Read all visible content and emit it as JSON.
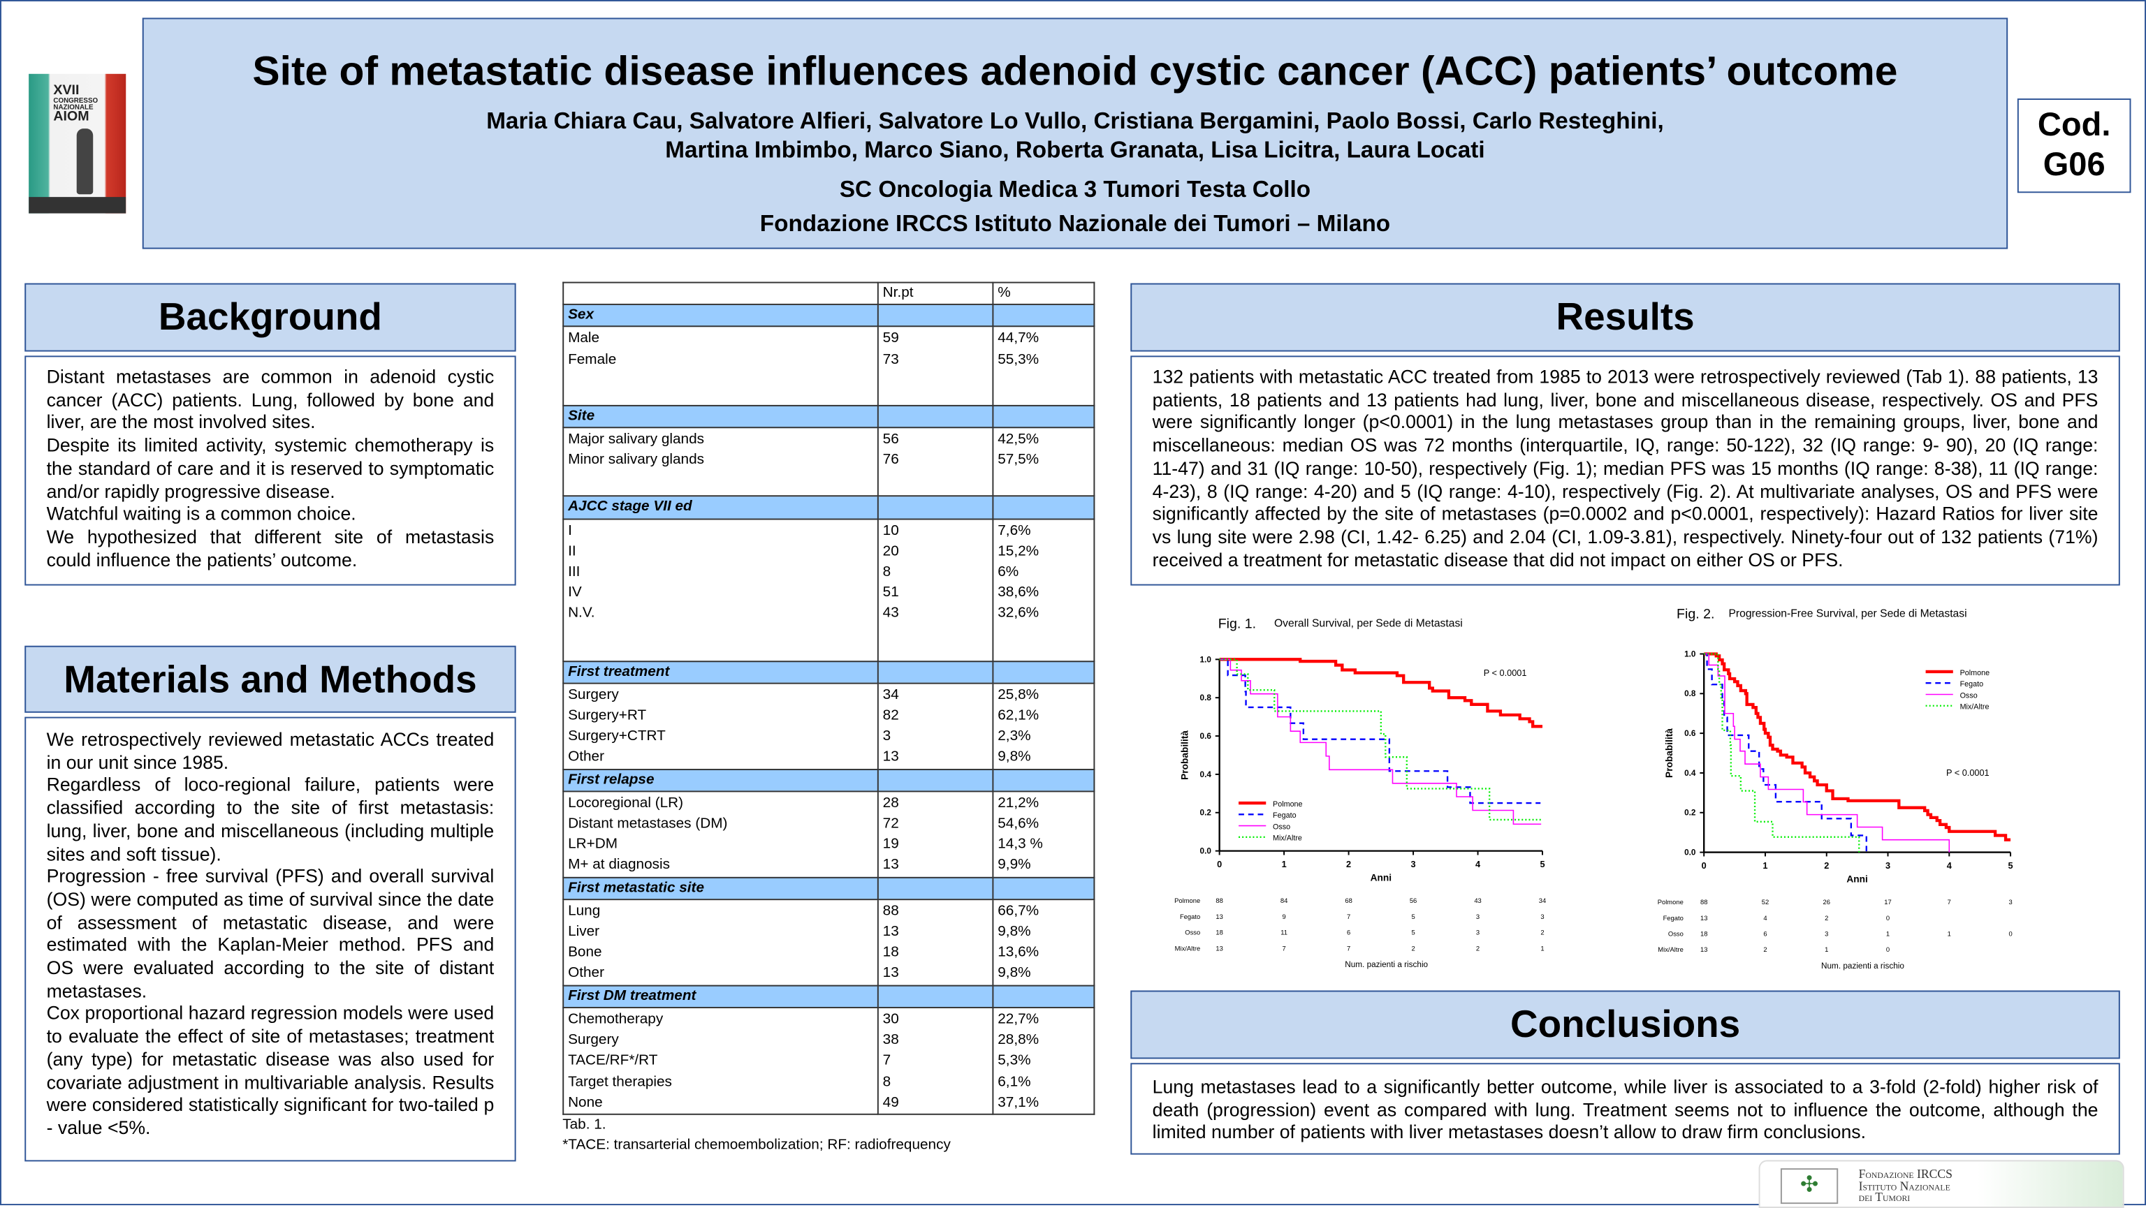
{
  "logo_aiom": {
    "line1": "XVII",
    "line2": "CONGRESSO",
    "line3": "NAZIONALE",
    "line4": "AIOM"
  },
  "header": {
    "title": "Site of metastatic disease influences adenoid cystic cancer (ACC) patients’ outcome",
    "authors_1": "Maria Chiara Cau, Salvatore Alfieri, Salvatore Lo Vullo, Cristiana Bergamini, Paolo Bossi, Carlo Resteghini,",
    "authors_2": "Martina Imbimbo, Marco Siano, Roberta Granata, Lisa Licitra, Laura Locati",
    "institution_1": "SC Oncologia  Medica 3 Tumori Testa Collo",
    "institution_2": "Fondazione IRCCS Istituto Nazionale dei Tumori – Milano"
  },
  "code": {
    "label": "Cod.",
    "value": "G06"
  },
  "background": {
    "title": "Background",
    "paragraphs": [
      "Distant metastases are common in adenoid cystic cancer (ACC) patients. Lung, followed by bone and liver, are the most involved sites.",
      "Despite its limited activity, systemic chemotherapy is the standard of care and it is reserved to symptomatic and/or rapidly progressive disease.",
      "Watchful waiting is a common choice.",
      "We hypothesized that different site of metastasis could influence the patients’ outcome."
    ]
  },
  "methods": {
    "title": "Materials and Methods",
    "paragraphs": [
      "We retrospectively reviewed metastatic ACCs treated in our unit since 1985.",
      "Regardless of loco-regional failure, patients were classified according to the site of first metastasis: lung, liver, bone and miscellaneous (including multiple sites and soft tissue).",
      "Progression - free survival (PFS) and overall survival (OS) were computed as time of survival since the date of assessment of metastatic disease, and were estimated with the Kaplan-Meier method. PFS and OS were evaluated according to the site of distant metastases.",
      "Cox proportional hazard regression models were used to evaluate the effect of site of metastases; treatment (any type) for metastatic disease was also used for covariate adjustment in multivariable analysis. Results were considered statistically significant for two-tailed p - value <5%."
    ]
  },
  "table": {
    "headers": [
      "",
      "Nr.pt",
      "%"
    ],
    "sections": [
      {
        "name": "Sex",
        "rows": [
          [
            "Male",
            "59",
            "44,7%"
          ],
          [
            "Female",
            "73",
            "55,3%"
          ]
        ]
      },
      {
        "name": "Site",
        "rows": [
          [
            "Major salivary glands",
            "56",
            "42,5%"
          ],
          [
            "Minor salivary glands",
            "76",
            "57,5%"
          ]
        ]
      },
      {
        "name": "AJCC stage VII ed",
        "rows": [
          [
            "I",
            "10",
            "7,6%"
          ],
          [
            "II",
            "20",
            "15,2%"
          ],
          [
            "III",
            "8",
            "6%"
          ],
          [
            "IV",
            "51",
            "38,6%"
          ],
          [
            "N.V.",
            "43",
            "32,6%"
          ]
        ]
      },
      {
        "name": "First treatment",
        "rows": [
          [
            "Surgery",
            "34",
            "25,8%"
          ],
          [
            "Surgery+RT",
            "82",
            "62,1%"
          ],
          [
            "Surgery+CTRT",
            "3",
            "2,3%"
          ],
          [
            "Other",
            "13",
            "9,8%"
          ]
        ]
      },
      {
        "name": "First relapse",
        "rows": [
          [
            "Locoregional (LR)",
            "28",
            "21,2%"
          ],
          [
            "Distant metastases (DM)",
            "72",
            "54,6%"
          ],
          [
            "LR+DM",
            "19",
            "14,3 %"
          ],
          [
            "M+ at diagnosis",
            "13",
            "9,9%"
          ]
        ]
      },
      {
        "name": "First metastatic site",
        "rows": [
          [
            "Lung",
            "88",
            "66,7%"
          ],
          [
            "Liver",
            "13",
            "9,8%"
          ],
          [
            "Bone",
            "18",
            "13,6%"
          ],
          [
            "Other",
            "13",
            "9,8%"
          ]
        ]
      },
      {
        "name": "First DM treatment",
        "rows": [
          [
            "Chemotherapy",
            "30",
            "22,7%"
          ],
          [
            "Surgery",
            "38",
            "28,8%"
          ],
          [
            "TACE/RF*/RT",
            "7",
            "5,3%"
          ],
          [
            "Target therapies",
            "8",
            "6,1%"
          ],
          [
            "None",
            "49",
            "37,1%"
          ]
        ]
      }
    ],
    "caption": "Tab. 1.",
    "footnote": "*TACE: transarterial chemoembolization; RF: radiofrequency"
  },
  "results": {
    "title": "Results",
    "text": "132 patients with metastatic ACC treated from 1985 to 2013 were retrospectively reviewed (Tab 1). 88 patients, 13 patients, 18 patients and 13 patients had lung, liver, bone and miscellaneous disease, respectively. OS and PFS were significantly longer (p<0.0001) in the lung metastases group than in the remaining groups, liver, bone and miscellaneous: median OS was 72 months (interquartile, IQ, range: 50-122), 32 (IQ range: 9- 90), 20 (IQ range: 11-47) and 31 (IQ range: 10-50), respectively (Fig. 1); median PFS was 15 months (IQ range: 8-38), 11 (IQ range: 4-23), 8 (IQ range: 4-20) and 5 (IQ range: 4-10), respectively (Fig. 2). At multivariate analyses, OS and PFS were significantly affected by the site of metastases (p=0.0002 and p<0.0001, respectively): Hazard Ratios for liver site vs lung site were 2.98 (CI, 1.42- 6.25) and 2.04 (CI, 1.09-3.81), respectively. Ninety-four out of 132 patients (71%) received a treatment for metastatic disease that did not impact on either OS or PFS."
  },
  "conclusions": {
    "title": "Conclusions",
    "text": "Lung metastases lead to a significantly better outcome, while liver is associated to a 3-fold (2-fold) higher risk of death (progression) event as compared with lung. Treatment seems not to influence the outcome, although the limited number of patients with liver metastases doesn’t allow to draw firm conclusions."
  },
  "logo_int": {
    "line1": "Fondazione IRCCS",
    "line2": "Istituto Nazionale",
    "line3": "dei Tumori"
  },
  "chart_data": [
    {
      "type": "line",
      "step": true,
      "fig_label": "Fig. 1.",
      "title": "Overall Survival, per Sede di Metastasi",
      "xlabel": "Anni",
      "ylabel": "Probabilità",
      "xlim": [
        0,
        5
      ],
      "ylim": [
        0,
        1
      ],
      "xticks": [
        "0",
        "1",
        "2",
        "3",
        "4",
        "5"
      ],
      "yticks": [
        "0.0",
        "0.2",
        "0.4",
        "0.6",
        "0.8",
        "1.0"
      ],
      "annotation": "P < 0.0001",
      "legend": "bottom-left",
      "series": [
        {
          "name": "Polmone",
          "color": "#ff0000",
          "style": "solid-thick",
          "end": 5,
          "steps": [
            [
              1.25,
              0.99
            ],
            [
              1.8,
              0.97
            ],
            [
              1.9,
              0.945
            ],
            [
              2.1,
              0.93
            ],
            [
              2.75,
              0.915
            ],
            [
              2.85,
              0.88
            ],
            [
              3.25,
              0.85
            ],
            [
              3.3,
              0.835
            ],
            [
              3.55,
              0.8
            ],
            [
              3.8,
              0.785
            ],
            [
              3.9,
              0.765
            ],
            [
              4.15,
              0.73
            ],
            [
              4.35,
              0.71
            ],
            [
              4.65,
              0.69
            ],
            [
              4.8,
              0.675
            ],
            [
              4.85,
              0.65
            ]
          ]
        },
        {
          "name": "Fegato",
          "color": "#0000ff",
          "style": "dashed",
          "end": 4.97,
          "steps": [
            [
              0.13,
              0.917
            ],
            [
              0.4,
              0.833
            ],
            [
              0.41,
              0.75
            ],
            [
              1.1,
              0.667
            ],
            [
              1.3,
              0.583
            ],
            [
              2.63,
              0.417
            ],
            [
              3.53,
              0.333
            ],
            [
              3.88,
              0.25
            ]
          ]
        },
        {
          "name": "Osso",
          "color": "#ff00ff",
          "style": "thin",
          "end": 4.98,
          "steps": [
            [
              0.17,
              0.944
            ],
            [
              0.34,
              0.889
            ],
            [
              0.48,
              0.82
            ],
            [
              0.9,
              0.7
            ],
            [
              1.1,
              0.625
            ],
            [
              1.25,
              0.566
            ],
            [
              1.65,
              0.495
            ],
            [
              1.7,
              0.424
            ],
            [
              2.68,
              0.353
            ],
            [
              3.67,
              0.283
            ],
            [
              3.92,
              0.212
            ],
            [
              4.55,
              0.14
            ]
          ]
        },
        {
          "name": "Mix/Altre",
          "color": "#00ee00",
          "style": "dotted",
          "end": 5,
          "steps": [
            [
              0.27,
              0.923
            ],
            [
              0.44,
              0.84
            ],
            [
              0.85,
              0.73
            ],
            [
              2.5,
              0.61
            ],
            [
              2.57,
              0.49
            ],
            [
              2.9,
              0.325
            ],
            [
              4.18,
              0.163
            ]
          ]
        }
      ],
      "risk_table": {
        "title": "Num. pazienti a rischio",
        "rows": [
          [
            "Polmone",
            "88",
            "84",
            "68",
            "56",
            "43",
            "34"
          ],
          [
            "Fegato",
            "13",
            "9",
            "7",
            "5",
            "3",
            "3"
          ],
          [
            "Osso",
            "18",
            "11",
            "6",
            "5",
            "3",
            "2"
          ],
          [
            "Mix/Altre",
            "13",
            "7",
            "7",
            "2",
            "2",
            "1"
          ]
        ]
      }
    },
    {
      "type": "line",
      "step": true,
      "fig_label": "Fig. 2.",
      "title": "Progression-Free Survival, per Sede di Metastasi",
      "xlabel": "Anni",
      "ylabel": "Probabilità",
      "xlim": [
        0,
        5
      ],
      "ylim": [
        0,
        1
      ],
      "xticks": [
        "0",
        "1",
        "2",
        "3",
        "4",
        "5"
      ],
      "yticks": [
        "0.0",
        "0.2",
        "0.4",
        "0.6",
        "0.8",
        "1.0"
      ],
      "annotation": "P < 0.0001",
      "legend": "top-right",
      "series": [
        {
          "name": "Polmone",
          "color": "#ff0000",
          "style": "solid-thick",
          "end": 5,
          "steps": [
            [
              0.2,
              0.99
            ],
            [
              0.25,
              0.97
            ],
            [
              0.3,
              0.95
            ],
            [
              0.33,
              0.92
            ],
            [
              0.4,
              0.9
            ],
            [
              0.42,
              0.875
            ],
            [
              0.5,
              0.86
            ],
            [
              0.55,
              0.84
            ],
            [
              0.6,
              0.815
            ],
            [
              0.68,
              0.8
            ],
            [
              0.7,
              0.745
            ],
            [
              0.8,
              0.73
            ],
            [
              0.85,
              0.7
            ],
            [
              0.88,
              0.68
            ],
            [
              0.92,
              0.65
            ],
            [
              0.98,
              0.62
            ],
            [
              1.0,
              0.6
            ],
            [
              1.05,
              0.58
            ],
            [
              1.08,
              0.54
            ],
            [
              1.12,
              0.52
            ],
            [
              1.2,
              0.51
            ],
            [
              1.25,
              0.49
            ],
            [
              1.35,
              0.48
            ],
            [
              1.45,
              0.45
            ],
            [
              1.6,
              0.43
            ],
            [
              1.65,
              0.4
            ],
            [
              1.73,
              0.38
            ],
            [
              1.8,
              0.36
            ],
            [
              1.85,
              0.34
            ],
            [
              2.0,
              0.31
            ],
            [
              2.1,
              0.27
            ],
            [
              2.35,
              0.26
            ],
            [
              3.18,
              0.225
            ],
            [
              3.6,
              0.21
            ],
            [
              3.65,
              0.19
            ],
            [
              3.7,
              0.175
            ],
            [
              3.8,
              0.16
            ],
            [
              3.85,
              0.14
            ],
            [
              3.95,
              0.125
            ],
            [
              4.0,
              0.105
            ],
            [
              4.75,
              0.085
            ],
            [
              4.92,
              0.063
            ]
          ]
        },
        {
          "name": "Fegato",
          "color": "#0000ff",
          "style": "dashed",
          "end": 2.65,
          "steps": [
            [
              0.05,
              0.923
            ],
            [
              0.13,
              0.846
            ],
            [
              0.3,
              0.769
            ],
            [
              0.33,
              0.68
            ],
            [
              0.38,
              0.59
            ],
            [
              0.73,
              0.51
            ],
            [
              0.9,
              0.42
            ],
            [
              0.97,
              0.34
            ],
            [
              1.17,
              0.255
            ],
            [
              1.92,
              0.17
            ],
            [
              2.4,
              0.085
            ],
            [
              2.65,
              0
            ]
          ]
        },
        {
          "name": "Osso",
          "color": "#ff00ff",
          "style": "thin",
          "end": 4.0,
          "steps": [
            [
              0.08,
              0.944
            ],
            [
              0.23,
              0.889
            ],
            [
              0.34,
              0.7
            ],
            [
              0.48,
              0.635
            ],
            [
              0.5,
              0.57
            ],
            [
              0.59,
              0.51
            ],
            [
              0.67,
              0.445
            ],
            [
              0.92,
              0.38
            ],
            [
              1.05,
              0.317
            ],
            [
              1.62,
              0.254
            ],
            [
              1.68,
              0.19
            ],
            [
              2.5,
              0.127
            ],
            [
              2.91,
              0.063
            ],
            [
              4.0,
              0
            ]
          ]
        },
        {
          "name": "Mix/Altre",
          "color": "#00ee00",
          "style": "dotted",
          "end": 2.53,
          "steps": [
            [
              0.23,
              0.923
            ],
            [
              0.25,
              0.846
            ],
            [
              0.28,
              0.77
            ],
            [
              0.3,
              0.615
            ],
            [
              0.43,
              0.54
            ],
            [
              0.44,
              0.385
            ],
            [
              0.6,
              0.31
            ],
            [
              0.83,
              0.154
            ],
            [
              1.12,
              0.077
            ],
            [
              2.53,
              0
            ]
          ]
        }
      ],
      "risk_table": {
        "title": "Num. pazienti a rischio",
        "rows": [
          [
            "Polmone",
            "88",
            "52",
            "26",
            "17",
            "7",
            "3"
          ],
          [
            "Fegato",
            "13",
            "4",
            "2",
            "0",
            "",
            ""
          ],
          [
            "Osso",
            "18",
            "6",
            "3",
            "1",
            "1",
            "0"
          ],
          [
            "Mix/Altre",
            "13",
            "2",
            "1",
            "0",
            "",
            ""
          ]
        ]
      }
    }
  ]
}
